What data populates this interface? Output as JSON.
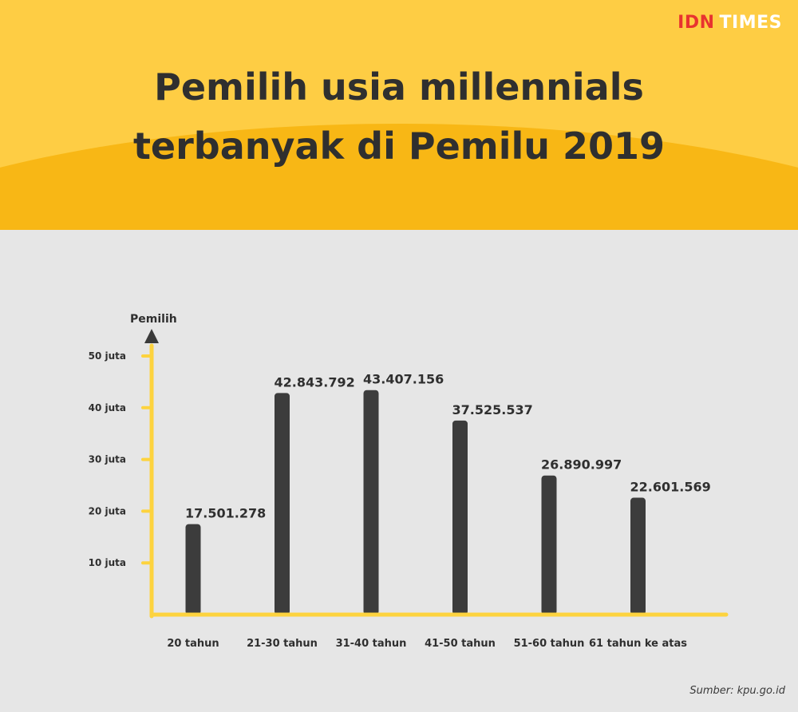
{
  "brand": {
    "part1": "IDN",
    "part2": "TIMES"
  },
  "title_lines": [
    "Pemilih usia millennials",
    "terbanyak di Pemilu 2019"
  ],
  "source": "Sumber: kpu.go.id",
  "colors": {
    "header_bg": "#fecd44",
    "header_arc": "#f8b715",
    "page_bg": "#e6e6e6",
    "axis": "#fdd33e",
    "bar": "#3c3c3c",
    "text": "#2f2f2f",
    "brand_red": "#e8332f"
  },
  "chart_data": {
    "type": "bar",
    "ylabel": "Pemilih",
    "xlabel": "",
    "ylim": [
      0,
      50000000
    ],
    "yticks": [
      {
        "value": 10000000,
        "label": "10 juta"
      },
      {
        "value": 20000000,
        "label": "20 juta"
      },
      {
        "value": 30000000,
        "label": "30 juta"
      },
      {
        "value": 40000000,
        "label": "40 juta"
      },
      {
        "value": 50000000,
        "label": "50 juta"
      }
    ],
    "categories": [
      "20 tahun",
      "21-30 tahun",
      "31-40 tahun",
      "41-50 tahun",
      "51-60 tahun",
      "61 tahun ke atas"
    ],
    "values": [
      17501278,
      42843792,
      43407156,
      37525537,
      26890997,
      22601569
    ],
    "value_labels": [
      "17.501.278",
      "42.843.792",
      "43.407.156",
      "37.525.537",
      "26.890.997",
      "22.601.569"
    ],
    "grid": false,
    "legend": "none"
  }
}
